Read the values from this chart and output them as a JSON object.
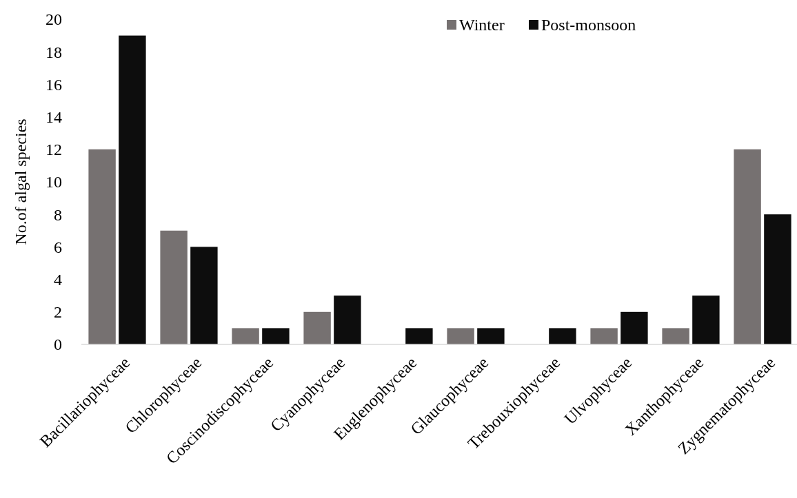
{
  "chart_data": {
    "type": "bar",
    "ylabel": "No.of algal species",
    "categories": [
      "Bacillariophyceae",
      "Chlorophyceae",
      "Coscinodiscophyceae",
      "Cyanophyceae",
      "Euglenophyceae",
      "Glaucophyceae",
      "Trebouxiophyceae",
      "Ulvophyceae",
      "Xanthophyceae",
      "Zygnematophyceae"
    ],
    "series": [
      {
        "name": "Winter",
        "color": "#767171",
        "values": [
          12,
          7,
          1,
          2,
          0,
          1,
          0,
          1,
          1,
          12
        ]
      },
      {
        "name": "Post-monsoon",
        "color": "#0d0d0d",
        "values": [
          19,
          6,
          1,
          3,
          1,
          1,
          1,
          2,
          3,
          8
        ]
      }
    ],
    "ylim": [
      0,
      20
    ],
    "yticks": [
      0,
      2,
      4,
      6,
      8,
      10,
      12,
      14,
      16,
      18,
      20
    ],
    "grid": false,
    "legend": "top right"
  }
}
